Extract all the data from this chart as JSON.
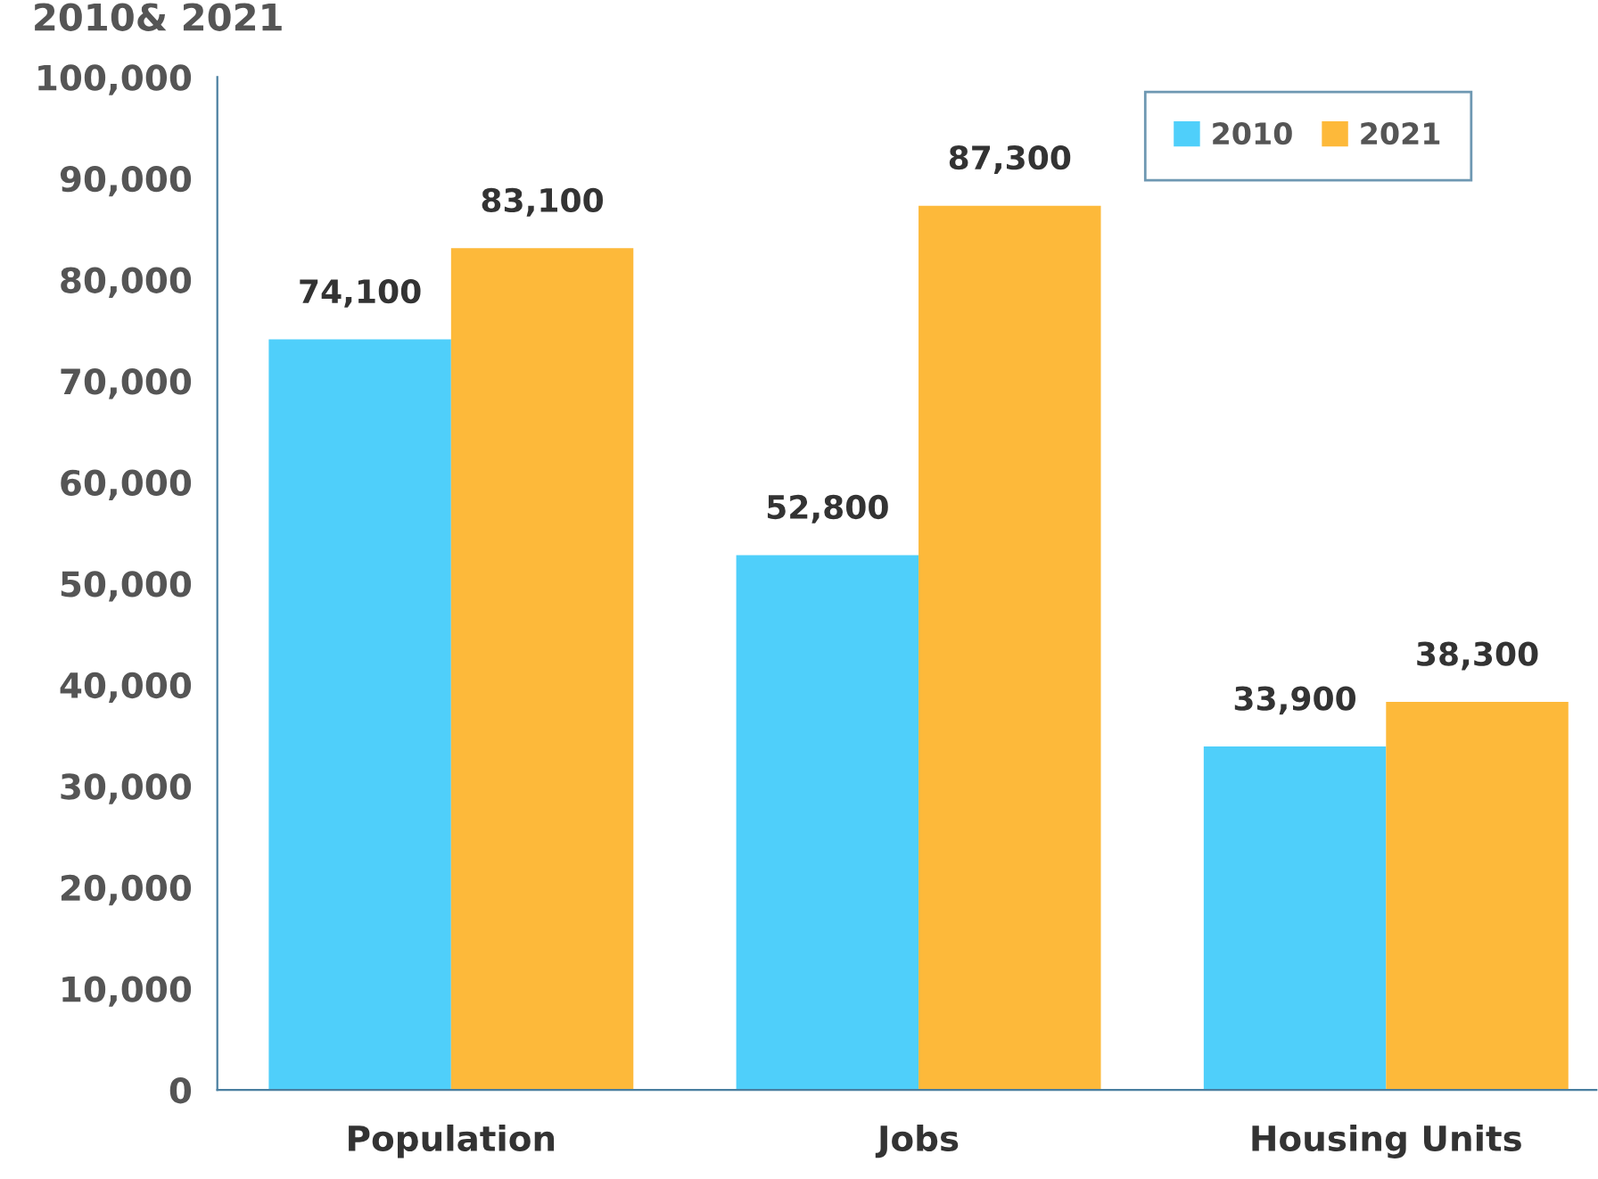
{
  "chart_data": {
    "type": "bar",
    "title": "2010& 2021",
    "categories": [
      "Population",
      "Jobs",
      "Housing Units"
    ],
    "series": [
      {
        "name": "2010",
        "color": "#4fcffa",
        "values": [
          74100,
          52800,
          33900
        ],
        "value_labels": [
          "74,100",
          "52,800",
          "33,900"
        ]
      },
      {
        "name": "2021",
        "color": "#fdb93a",
        "values": [
          83100,
          87300,
          38300
        ],
        "value_labels": [
          "83,100",
          "87,300",
          "38,300"
        ]
      }
    ],
    "ylim": [
      0,
      100000
    ],
    "yticks": [
      {
        "value": 0,
        "label": "0"
      },
      {
        "value": 10000,
        "label": "10,000"
      },
      {
        "value": 20000,
        "label": "20,000"
      },
      {
        "value": 30000,
        "label": "30,000"
      },
      {
        "value": 40000,
        "label": "40,000"
      },
      {
        "value": 50000,
        "label": "50,000"
      },
      {
        "value": 60000,
        "label": "60,000"
      },
      {
        "value": 70000,
        "label": "70,000"
      },
      {
        "value": 80000,
        "label": "80,000"
      },
      {
        "value": 90000,
        "label": "90,000"
      },
      {
        "value": 100000,
        "label": "100,000"
      }
    ],
    "grid": false,
    "legend": "top right"
  }
}
